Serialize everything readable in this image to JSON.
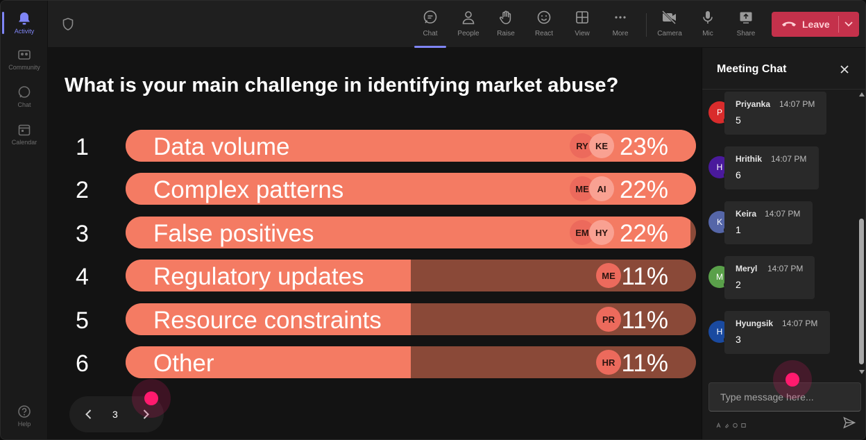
{
  "rail": {
    "items": [
      {
        "label": "Activity",
        "icon": "bell-icon",
        "active": true
      },
      {
        "label": "Community",
        "icon": "community-icon"
      },
      {
        "label": "Chat",
        "icon": "chat-icon"
      },
      {
        "label": "Calendar",
        "icon": "calendar-icon"
      }
    ],
    "help": {
      "label": "Help",
      "icon": "help-icon"
    }
  },
  "toolbar": {
    "items": [
      {
        "label": "Chat",
        "icon": "chat-icon",
        "active": true
      },
      {
        "label": "People",
        "icon": "people-icon"
      },
      {
        "label": "Raise",
        "icon": "hand-icon"
      },
      {
        "label": "React",
        "icon": "smiley-icon"
      },
      {
        "label": "View",
        "icon": "grid-icon"
      },
      {
        "label": "More",
        "icon": "more-icon"
      },
      {
        "label": "Camera",
        "icon": "camera-off-icon"
      },
      {
        "label": "Mic",
        "icon": "microphone-icon"
      },
      {
        "label": "Share",
        "icon": "share-icon"
      }
    ],
    "leave_label": "Leave"
  },
  "poll": {
    "question": "What is your main challenge in identifying market abuse?",
    "options": [
      {
        "number": "1",
        "label": "Data volume",
        "percent_label": "23%",
        "percent": 23,
        "fill_fraction": 1.0,
        "voters": [
          "RY",
          "KE"
        ]
      },
      {
        "number": "2",
        "label": "Complex patterns",
        "percent_label": "22%",
        "percent": 22,
        "fill_fraction": 1.0,
        "voters": [
          "ME",
          "AI"
        ]
      },
      {
        "number": "3",
        "label": "False positives",
        "percent_label": "22%",
        "percent": 22,
        "fill_fraction": 0.99,
        "voters": [
          "EM",
          "HY"
        ]
      },
      {
        "number": "4",
        "label": "Regulatory updates",
        "percent_label": "11%",
        "percent": 11,
        "fill_fraction": 0.5,
        "voters": [
          "ME"
        ]
      },
      {
        "number": "5",
        "label": "Resource constraints",
        "percent_label": "11%",
        "percent": 11,
        "fill_fraction": 0.5,
        "voters": [
          "PR"
        ]
      },
      {
        "number": "6",
        "label": "Other",
        "percent_label": "11%",
        "percent": 11,
        "fill_fraction": 0.5,
        "voters": [
          "HR"
        ]
      }
    ],
    "colors": {
      "fill": "#f47b63",
      "track": "#8a4938"
    }
  },
  "pager": {
    "page": "3"
  },
  "chat": {
    "title": "Meeting Chat",
    "messages": [
      {
        "initial": "P",
        "name": "Priyanka",
        "time": "14:07 PM",
        "text": "5",
        "color": "#d92c2c"
      },
      {
        "initial": "H",
        "name": "Hrithik",
        "time": "14:07 PM",
        "text": "6",
        "color": "#4a1a9c"
      },
      {
        "initial": "K",
        "name": "Keira",
        "time": "14:07 PM",
        "text": "1",
        "color": "#5566a8"
      },
      {
        "initial": "M",
        "name": "Meryl",
        "time": "14:07 PM",
        "text": "2",
        "color": "#5aa04a"
      },
      {
        "initial": "H",
        "name": "Hyungsik",
        "time": "14:07 PM",
        "text": "3",
        "color": "#1a4aa0"
      }
    ],
    "input_placeholder": "Type message here..."
  }
}
